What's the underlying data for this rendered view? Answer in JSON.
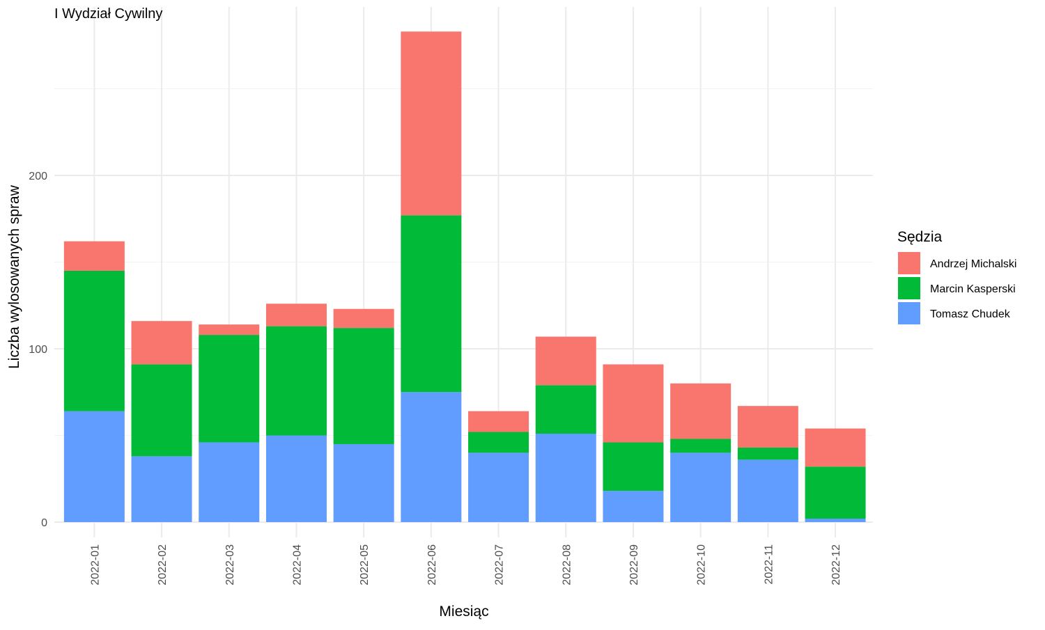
{
  "chart_data": {
    "type": "bar",
    "stacked": true,
    "title": "I Wydział Cywilny",
    "xlabel": "Miesiąc",
    "ylabel": "Liczba wylosowanych spraw",
    "ylim": [
      0,
      290
    ],
    "yticks": [
      0,
      100,
      200
    ],
    "grid": true,
    "legend_position": "right",
    "legend_title": "Sędzia",
    "categories": [
      "2022-01",
      "2022-02",
      "2022-03",
      "2022-04",
      "2022-05",
      "2022-06",
      "2022-07",
      "2022-08",
      "2022-09",
      "2022-10",
      "2022-11",
      "2022-12"
    ],
    "series": [
      {
        "name": "Tomasz Chudek",
        "color": "#619CFF",
        "values": [
          64,
          38,
          46,
          50,
          45,
          75,
          40,
          51,
          18,
          40,
          36,
          2
        ]
      },
      {
        "name": "Marcin Kasperski",
        "color": "#00BA38",
        "values": [
          81,
          53,
          62,
          63,
          67,
          102,
          12,
          28,
          28,
          8,
          7,
          30
        ]
      },
      {
        "name": "Andrzej Michalski",
        "color": "#F8766D",
        "values": [
          17,
          25,
          6,
          13,
          11,
          106,
          12,
          28,
          45,
          32,
          24,
          22
        ]
      }
    ],
    "legend_order": [
      "Andrzej Michalski",
      "Marcin Kasperski",
      "Tomasz Chudek"
    ]
  }
}
